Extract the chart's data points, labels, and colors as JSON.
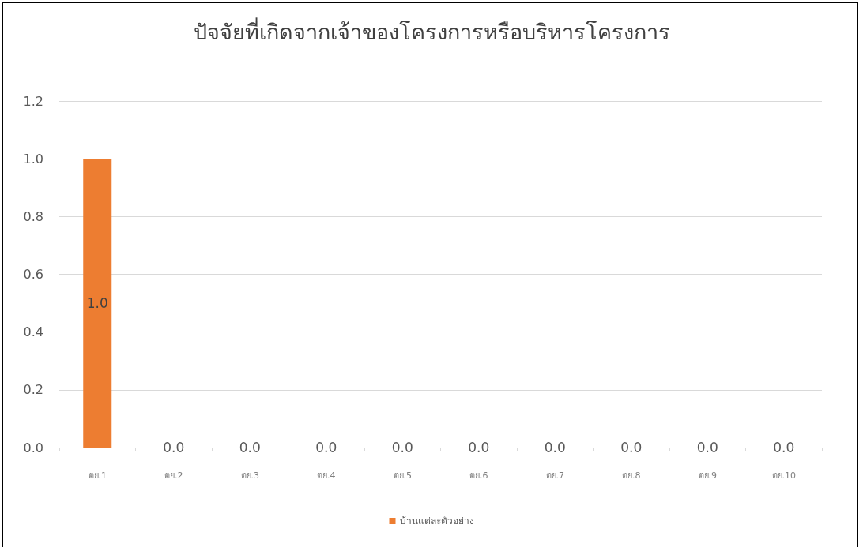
{
  "chart_data": {
    "type": "bar",
    "title": "ปัจจัยที่เกิดจากเจ้าของโครงการหรือบริหารโครงการ",
    "categories": [
      "ตย.1",
      "ตย.2",
      "ตย.3",
      "ตย.4",
      "ตย.5",
      "ตย.6",
      "ตย.7",
      "ตย.8",
      "ตย.9",
      "ตย.10"
    ],
    "series": [
      {
        "name": "บ้านแต่ละตัวอย่าง",
        "color": "#ed7d31",
        "values": [
          1,
          0,
          0,
          0,
          0,
          0,
          0,
          0,
          0,
          0
        ],
        "value_labels": [
          "1.0",
          "0.0",
          "0.0",
          "0.0",
          "0.0",
          "0.0",
          "0.0",
          "0.0",
          "0.0",
          "0.0"
        ]
      }
    ],
    "ylim": [
      0,
      1.2
    ],
    "yticks": [
      {
        "value": 0,
        "label": "0.0"
      },
      0.2,
      0.4,
      0.6,
      0.8,
      {
        "value": 1,
        "label": "1.0"
      },
      1.2
    ],
    "grid": "y",
    "legend": "bottom"
  }
}
